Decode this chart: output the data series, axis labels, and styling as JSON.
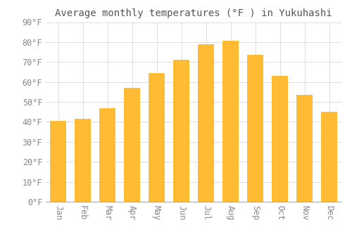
{
  "title": "Average monthly temperatures (°F ) in Yukuhashi",
  "months": [
    "Jan",
    "Feb",
    "Mar",
    "Apr",
    "May",
    "Jun",
    "Jul",
    "Aug",
    "Sep",
    "Oct",
    "Nov",
    "Dec"
  ],
  "values": [
    40.5,
    41.5,
    47.0,
    57.0,
    64.5,
    71.0,
    79.0,
    80.5,
    73.5,
    63.0,
    53.5,
    45.0
  ],
  "bar_color_top": "#FFBB33",
  "bar_color_bottom": "#F5A000",
  "background_color": "#FFFFFF",
  "grid_color": "#DDDDDD",
  "text_color": "#888888",
  "title_color": "#555555",
  "ylim": [
    0,
    90
  ],
  "yticks": [
    0,
    10,
    20,
    30,
    40,
    50,
    60,
    70,
    80,
    90
  ],
  "title_fontsize": 10,
  "tick_fontsize": 8.5
}
